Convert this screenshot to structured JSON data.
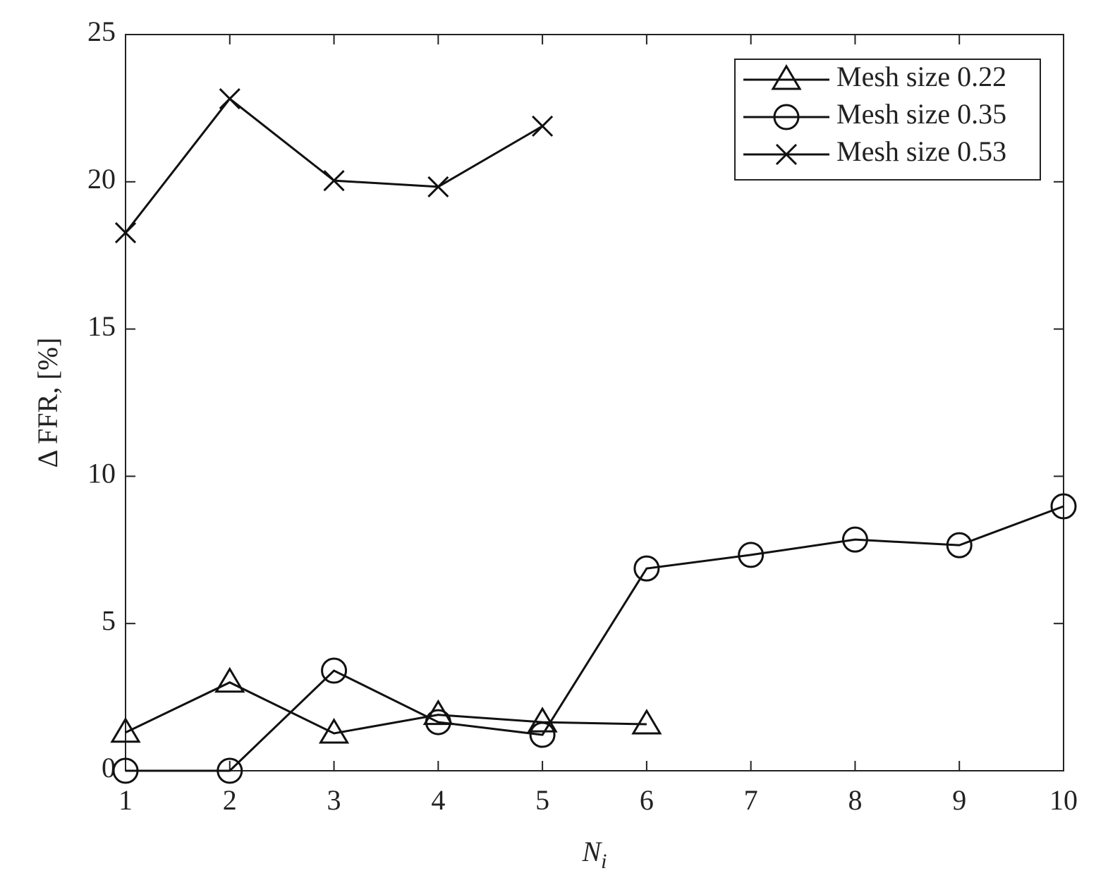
{
  "chart_data": {
    "type": "line",
    "xlabel": "N",
    "xlabel_subscript": "i",
    "ylabel": "Δ FFR, [%]",
    "x": [
      1,
      2,
      3,
      4,
      5,
      6,
      7,
      8,
      9,
      10
    ],
    "series": [
      {
        "name": "Mesh size 0.22",
        "color": "#111111",
        "marker": "triangle",
        "values": [
          1.3,
          3.0,
          1.27,
          1.9,
          1.65,
          1.58,
          null,
          null,
          null,
          null
        ]
      },
      {
        "name": "Mesh size 0.35",
        "color": "#111111",
        "marker": "circle",
        "values": [
          0,
          0,
          3.4,
          1.65,
          1.22,
          6.87,
          7.33,
          7.85,
          7.66,
          8.98
        ]
      },
      {
        "name": "Mesh size 0.53",
        "color": "#111111",
        "marker": "x",
        "values": [
          18.27,
          22.82,
          20.04,
          19.83,
          21.89,
          null,
          null,
          null,
          null,
          null
        ]
      }
    ],
    "xlim": [
      1,
      10
    ],
    "xticks": [
      1,
      2,
      3,
      4,
      5,
      6,
      7,
      8,
      9,
      10
    ],
    "ylim": [
      0,
      25
    ],
    "yticks": [
      0,
      5,
      10,
      15,
      20,
      25
    ],
    "grid": false,
    "legend": "upper right"
  }
}
